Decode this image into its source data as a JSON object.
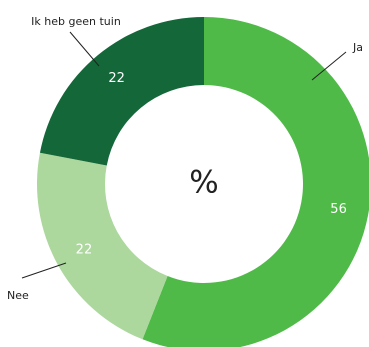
{
  "chart_data": {
    "type": "pie",
    "variant": "donut",
    "center_label": "%",
    "start_angle_deg": 0,
    "direction": "clockwise",
    "slices": [
      {
        "label": "Ja",
        "value": 56,
        "color": "#4fba48"
      },
      {
        "label": "Nee",
        "value": 22,
        "color": "#acd79d"
      },
      {
        "label": "Ik heb geen tuin",
        "value": 22,
        "color": "#136738"
      }
    ],
    "data_label_color": "#ffffff"
  }
}
